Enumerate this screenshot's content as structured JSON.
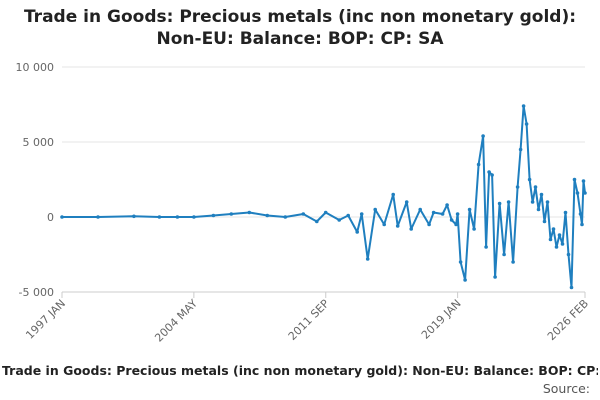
{
  "colors": {
    "series": "#1f7fbf",
    "grid": "#e6e6e6",
    "axis": "#cccccc"
  },
  "footer": {
    "title": "Trade in Goods: Precious metals (inc non monetary gold): Non-EU: Balance: BOP: CP: SA",
    "source": "Source:"
  },
  "chart_data": {
    "type": "line",
    "title_lines": [
      "Trade in Goods: Precious metals (inc non monetary gold):",
      "Non-EU: Balance: BOP: CP: SA"
    ],
    "xlabel": "",
    "ylabel": "",
    "x_tick_labels": [
      "1997 JAN",
      "2004 MAY",
      "2011 SEP",
      "2019 JAN",
      "2026 FEB"
    ],
    "y_tick_labels": [
      "10 000",
      "5 000",
      "0",
      "-5 000"
    ],
    "ylim": [
      -5000,
      10000
    ],
    "grid": "horizontal",
    "legend": "none",
    "markers": true,
    "series": [
      {
        "x": [
          "1997-01",
          "1999-01",
          "2001-01",
          "2002-06",
          "2003-06",
          "2004-05",
          "2005-06",
          "2006-06",
          "2007-06",
          "2008-06",
          "2009-06",
          "2010-06",
          "2011-03",
          "2011-09",
          "2012-06",
          "2012-12",
          "2013-06",
          "2013-09",
          "2014-01",
          "2014-06",
          "2014-12",
          "2015-06",
          "2015-09",
          "2016-03",
          "2016-06",
          "2016-12",
          "2017-06",
          "2017-09",
          "2018-03",
          "2018-06",
          "2018-09",
          "2018-12",
          "2019-01",
          "2019-03",
          "2019-06",
          "2019-09",
          "2019-12",
          "2020-03",
          "2020-06",
          "2020-08",
          "2020-10",
          "2020-12",
          "2021-02",
          "2021-05",
          "2021-08",
          "2021-11",
          "2022-02",
          "2022-05",
          "2022-07",
          "2022-09",
          "2022-11",
          "2023-01",
          "2023-03",
          "2023-05",
          "2023-07",
          "2023-09",
          "2023-11",
          "2024-01",
          "2024-03",
          "2024-05",
          "2024-07",
          "2024-09",
          "2024-11",
          "2025-01",
          "2025-03",
          "2025-05",
          "2025-07",
          "2025-09",
          "2025-11",
          "2025-12",
          "2026-01",
          "2026-02"
        ],
        "values": [
          0,
          0,
          50,
          0,
          0,
          0,
          100,
          200,
          300,
          100,
          0,
          200,
          -300,
          300,
          -200,
          100,
          -1000,
          200,
          -2800,
          500,
          -500,
          1500,
          -600,
          1000,
          -800,
          500,
          -500,
          300,
          200,
          800,
          -200,
          -500,
          200,
          -3000,
          -4200,
          500,
          -800,
          3500,
          5400,
          -2000,
          3000,
          2800,
          -4000,
          900,
          -2500,
          1000,
          -3000,
          2000,
          4500,
          7400,
          6200,
          2500,
          1000,
          2000,
          500,
          1500,
          -300,
          1000,
          -1500,
          -800,
          -2000,
          -1200,
          -1800,
          300,
          -2500,
          -4700,
          2500,
          1600,
          200,
          -500,
          2400,
          1600
        ]
      }
    ]
  }
}
